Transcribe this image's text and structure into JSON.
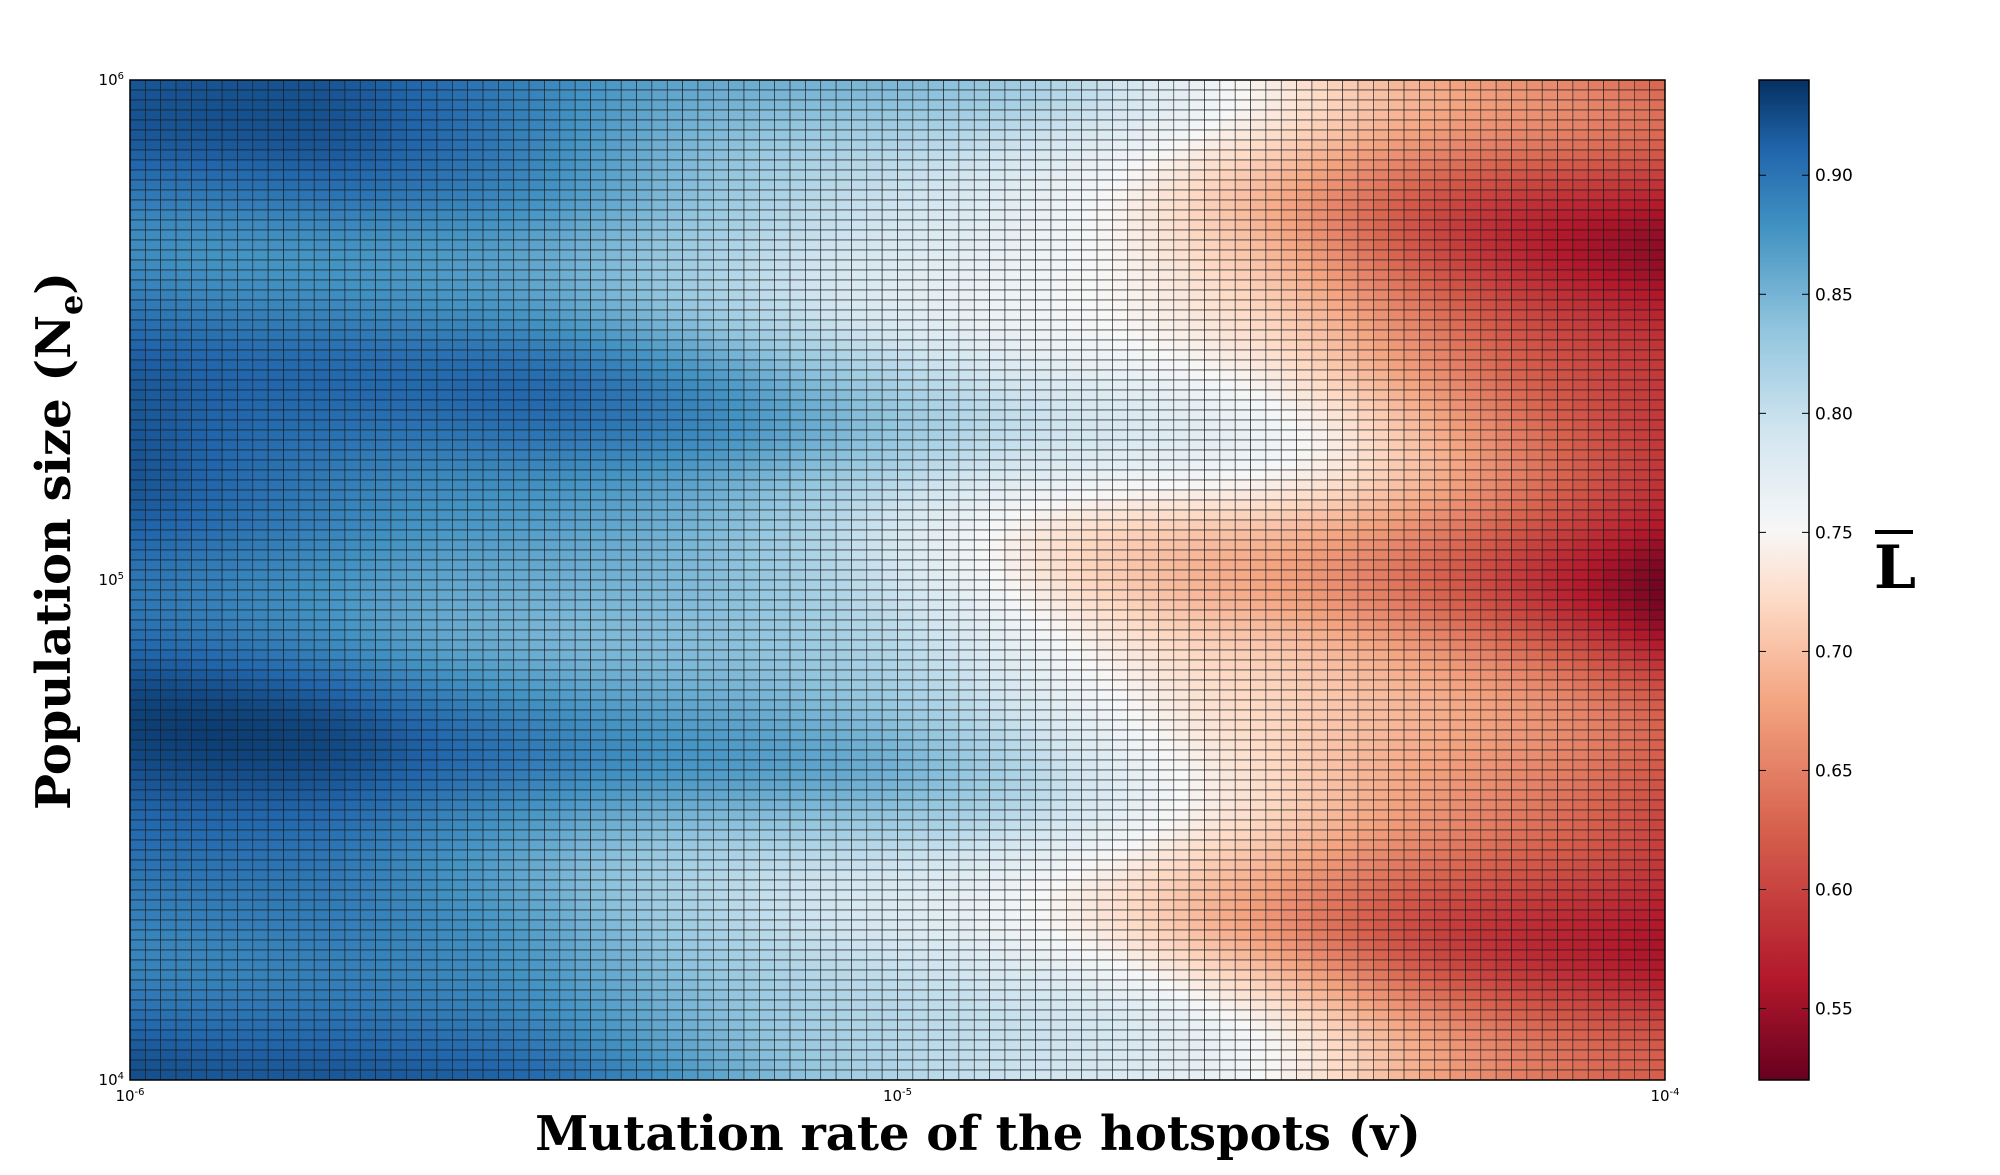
{
  "chart_data": {
    "type": "heatmap",
    "xlabel": "Mutation rate of the hotspots (v)",
    "ylabel_main": "Population size (N",
    "ylabel_sub": "e",
    "ylabel_close": ")",
    "colorbar_label": "L",
    "x_scale": "log",
    "y_scale": "log",
    "xlim": [
      1e-06,
      0.0001
    ],
    "ylim": [
      10000.0,
      1000000.0
    ],
    "x_ticks": [
      {
        "base": "10",
        "exp": "-6",
        "value": 1e-06
      },
      {
        "base": "10",
        "exp": "-5",
        "value": 1e-05
      },
      {
        "base": "10",
        "exp": "-4",
        "value": 0.0001
      }
    ],
    "y_ticks": [
      {
        "base": "10",
        "exp": "4",
        "value": 10000.0
      },
      {
        "base": "10",
        "exp": "5",
        "value": 100000.0
      },
      {
        "base": "10",
        "exp": "6",
        "value": 1000000.0
      }
    ],
    "colorbar_range": [
      0.52,
      0.94
    ],
    "colorbar_ticks": [
      "0.55",
      "0.60",
      "0.65",
      "0.70",
      "0.75",
      "0.80",
      "0.85",
      "0.90"
    ],
    "colormap": "RdBu",
    "grid": true,
    "grid_columns": 100,
    "grid_rows": 100,
    "value_profile_along_x": [
      {
        "log10_v": -6.0,
        "L": 0.91
      },
      {
        "log10_v": -5.75,
        "L": 0.9
      },
      {
        "log10_v": -5.5,
        "L": 0.88
      },
      {
        "log10_v": -5.25,
        "L": 0.85
      },
      {
        "log10_v": -5.0,
        "L": 0.81
      },
      {
        "log10_v": -4.75,
        "L": 0.76
      },
      {
        "log10_v": -4.5,
        "L": 0.71
      },
      {
        "log10_v": -4.25,
        "L": 0.64
      },
      {
        "log10_v": -4.0,
        "L": 0.58
      }
    ]
  }
}
